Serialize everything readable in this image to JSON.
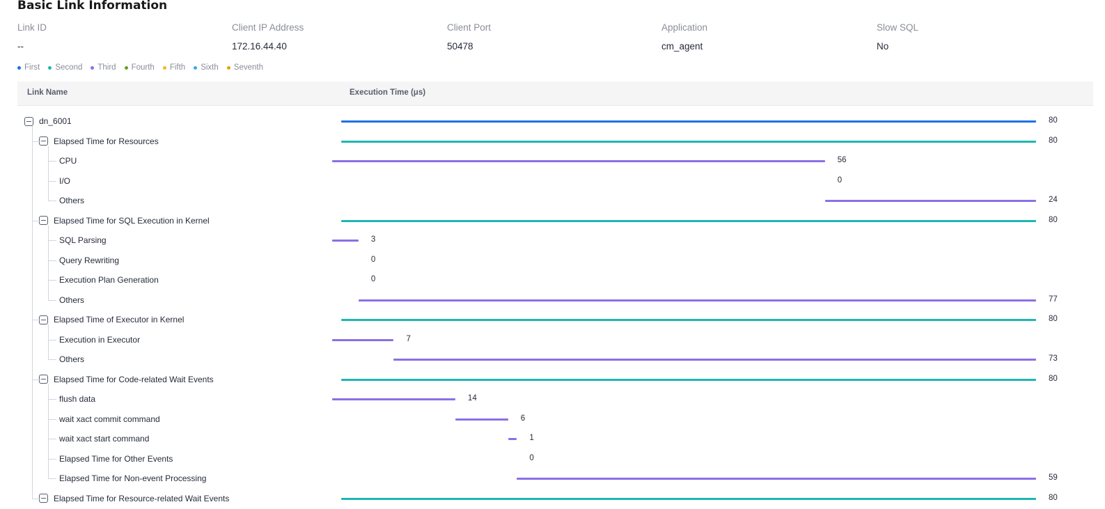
{
  "title": "Basic Link Information",
  "info": [
    {
      "label": "Link ID",
      "value": "--"
    },
    {
      "label": "Client IP Address",
      "value": "172.16.44.40"
    },
    {
      "label": "Client Port",
      "value": "50478"
    },
    {
      "label": "Application",
      "value": "cm_agent"
    },
    {
      "label": "Slow SQL",
      "value": "No"
    }
  ],
  "legend": [
    {
      "label": "First",
      "color": "#1e6fe6"
    },
    {
      "label": "Second",
      "color": "#1fb6b0"
    },
    {
      "label": "Third",
      "color": "#8b6fe6"
    },
    {
      "label": "Fourth",
      "color": "#5ca621"
    },
    {
      "label": "Fifth",
      "color": "#f5b822"
    },
    {
      "label": "Sixth",
      "color": "#3aa9e8"
    },
    {
      "label": "Seventh",
      "color": "#e0a500"
    }
  ],
  "table": {
    "col_name": "Link Name",
    "col_time": "Execution Time (μs)",
    "total": 80,
    "rows": [
      {
        "name": "dn_6001",
        "level": 0,
        "expandable": true,
        "start": 0,
        "value": 80
      },
      {
        "name": "Elapsed Time for Resources",
        "level": 1,
        "expandable": true,
        "start": 0,
        "value": 80
      },
      {
        "name": "CPU",
        "level": 2,
        "expandable": false,
        "start": 0,
        "value": 56
      },
      {
        "name": "I/O",
        "level": 2,
        "expandable": false,
        "start": 56,
        "value": 0
      },
      {
        "name": "Others",
        "level": 2,
        "expandable": false,
        "start": 56,
        "value": 24
      },
      {
        "name": "Elapsed Time for SQL Execution in Kernel",
        "level": 1,
        "expandable": true,
        "start": 0,
        "value": 80
      },
      {
        "name": "SQL Parsing",
        "level": 2,
        "expandable": false,
        "start": 0,
        "value": 3
      },
      {
        "name": "Query Rewriting",
        "level": 2,
        "expandable": false,
        "start": 3,
        "value": 0
      },
      {
        "name": "Execution Plan Generation",
        "level": 2,
        "expandable": false,
        "start": 3,
        "value": 0
      },
      {
        "name": "Others",
        "level": 2,
        "expandable": false,
        "start": 3,
        "value": 77
      },
      {
        "name": "Elapsed Time of Executor in Kernel",
        "level": 1,
        "expandable": true,
        "start": 0,
        "value": 80
      },
      {
        "name": "Execution in Executor",
        "level": 2,
        "expandable": false,
        "start": 0,
        "value": 7
      },
      {
        "name": "Others",
        "level": 2,
        "expandable": false,
        "start": 7,
        "value": 73
      },
      {
        "name": "Elapsed Time for Code-related Wait Events",
        "level": 1,
        "expandable": true,
        "start": 0,
        "value": 80
      },
      {
        "name": "flush data",
        "level": 2,
        "expandable": false,
        "start": 0,
        "value": 14
      },
      {
        "name": "wait xact commit command",
        "level": 2,
        "expandable": false,
        "start": 14,
        "value": 6
      },
      {
        "name": "wait xact start command",
        "level": 2,
        "expandable": false,
        "start": 20,
        "value": 1
      },
      {
        "name": "Elapsed Time for Other Events",
        "level": 2,
        "expandable": false,
        "start": 21,
        "value": 0
      },
      {
        "name": "Elapsed Time for Non-event Processing",
        "level": 2,
        "expandable": false,
        "start": 21,
        "value": 59
      },
      {
        "name": "Elapsed Time for Resource-related Wait Events",
        "level": 1,
        "expandable": true,
        "start": 0,
        "value": 80
      }
    ]
  }
}
